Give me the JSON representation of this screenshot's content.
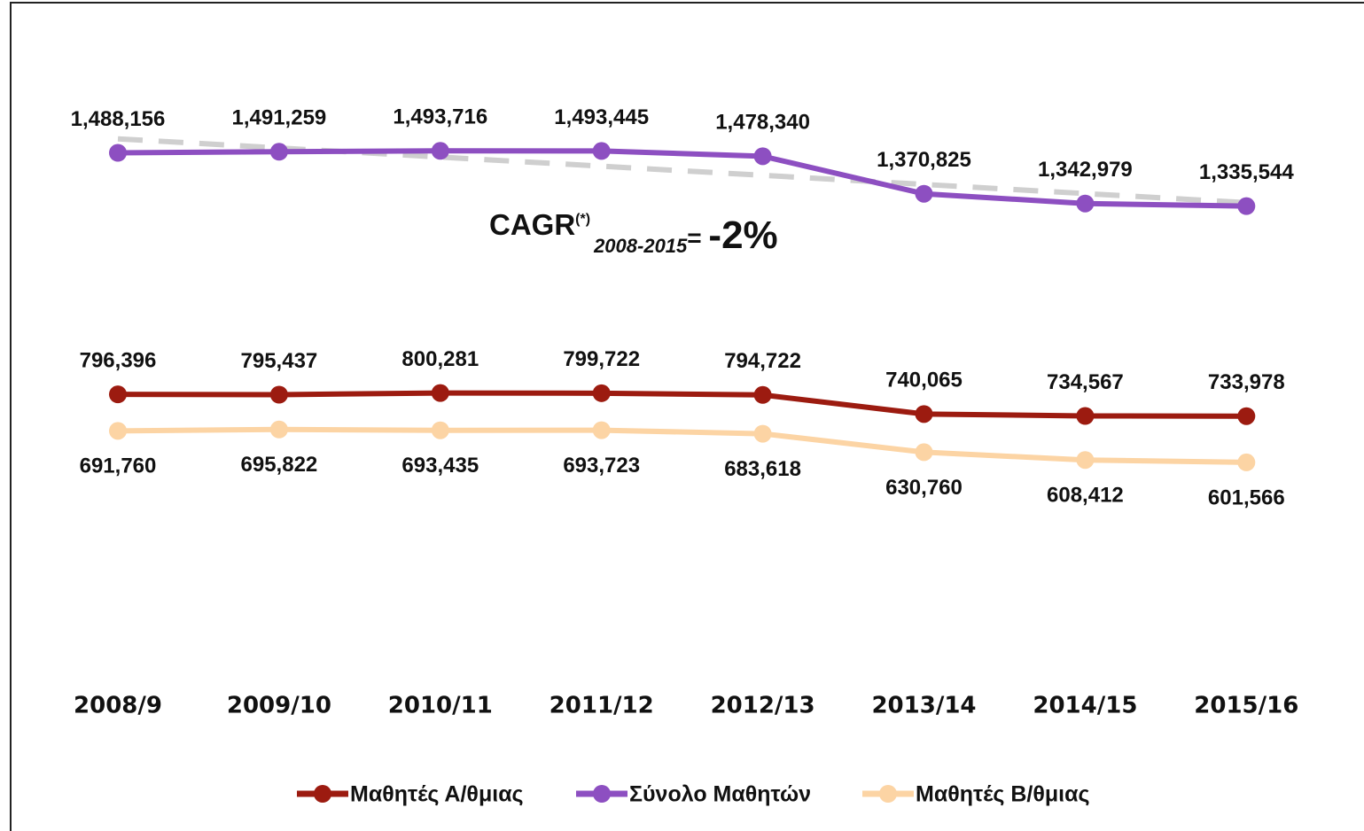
{
  "chart_data": {
    "type": "line",
    "categories": [
      "2008/9",
      "2009/10",
      "2010/11",
      "2011/12",
      "2012/13",
      "2013/14",
      "2014/15",
      "2015/16"
    ],
    "series": [
      {
        "name": "Μαθητές Α/θμιας",
        "color": "#9c1b10",
        "label_position": "above",
        "values": [
          796396,
          795437,
          800281,
          799722,
          794722,
          740065,
          734567,
          733978
        ],
        "value_labels": [
          "796,396",
          "795,437",
          "800,281",
          "799,722",
          "794,722",
          "740,065",
          "734,567",
          "733,978"
        ]
      },
      {
        "name": "Σύνολο Μαθητών",
        "color": "#8d4fc1",
        "label_position": "above",
        "trendline": true,
        "values": [
          1488156,
          1491259,
          1493716,
          1493445,
          1478340,
          1370825,
          1342979,
          1335544
        ],
        "value_labels": [
          "1,488,156",
          "1,491,259",
          "1,493,716",
          "1,493,445",
          "1,478,340",
          "1,370,825",
          "1,342,979",
          "1,335,544"
        ]
      },
      {
        "name": "Μαθητές Β/θμιας",
        "color": "#fcd4a4",
        "label_position": "below",
        "values": [
          691760,
          695822,
          693435,
          693723,
          683618,
          630760,
          608412,
          601566
        ],
        "value_labels": [
          "691,760",
          "695,822",
          "693,435",
          "693,723",
          "683,618",
          "630,760",
          "608,412",
          "601,566"
        ]
      }
    ],
    "ylim": [
      0,
      1700000
    ],
    "legend": "bottom",
    "annotation": {
      "main": "CAGR",
      "sup": "(*)",
      "sub": "2008-2015",
      "eq": "= ",
      "value": "-2%"
    }
  }
}
